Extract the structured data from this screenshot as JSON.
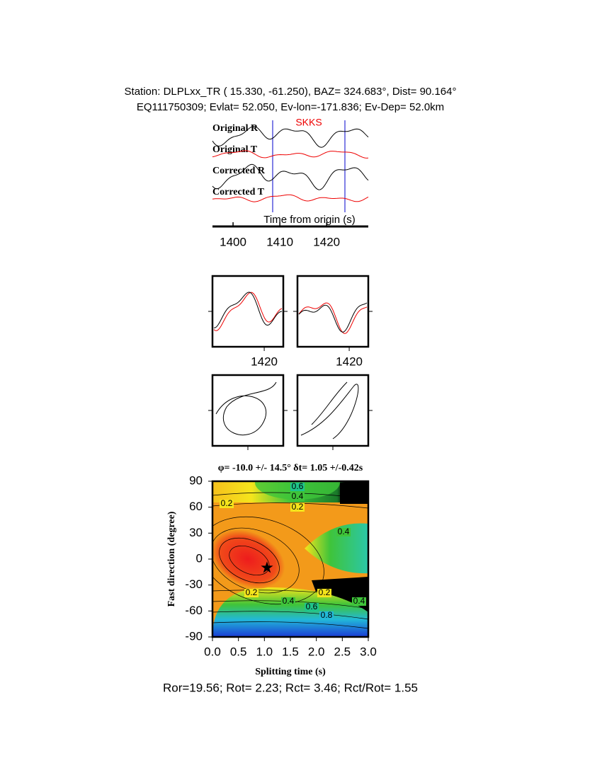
{
  "header": {
    "line1": "Station: DLPLxx_TR (  15.330,  -61.250), BAZ=  324.683°, Dist=   90.164°",
    "line2": "EQ111750309; Evlat=  52.050, Ev-lon=-171.836; Ev-Dep= 52.0km"
  },
  "traces": {
    "phase": "SKKS",
    "labels": [
      "Original R",
      "Original T",
      "Corrected R",
      "Corrected T"
    ],
    "xlabel": "Time from origin (s)",
    "xlim": [
      1395.6,
      1428.9
    ],
    "xticks": [
      1400,
      1410,
      1420
    ]
  },
  "windows": [
    {
      "xlim": [
        1401,
        1427
      ],
      "xticks": [
        1420
      ]
    },
    {
      "xlim": [
        1401,
        1427
      ],
      "xticks": [
        1420
      ]
    }
  ],
  "grid_search": {
    "title": "φ= -10.0 +/- 14.5° δt= 1.05 +/-0.42s",
    "xlabel": "Splitting time (s)",
    "ylabel": "Fast direction (degree)",
    "xlim": [
      0,
      3
    ],
    "ylim": [
      -90,
      90
    ],
    "xticks": [
      {
        "value": 0,
        "label": "0.0"
      },
      {
        "value": 0.5,
        "label": "0.5"
      },
      {
        "value": 1,
        "label": "1.0"
      },
      {
        "value": 1.5,
        "label": "1.5"
      },
      {
        "value": 2,
        "label": "2.0"
      },
      {
        "value": 2.5,
        "label": "2.5"
      },
      {
        "value": 3,
        "label": "3.0"
      }
    ],
    "yticks": [
      -90,
      -60,
      -30,
      0,
      30,
      60,
      90
    ],
    "best": {
      "dt": 1.05,
      "phi": -10
    },
    "contour_labels": [
      "0.2",
      "0.4",
      "0.6",
      "0.8"
    ]
  },
  "footer": "Ror=19.56; Rot= 2.23; Rct= 3.46; Rct/Rot= 1.55"
}
